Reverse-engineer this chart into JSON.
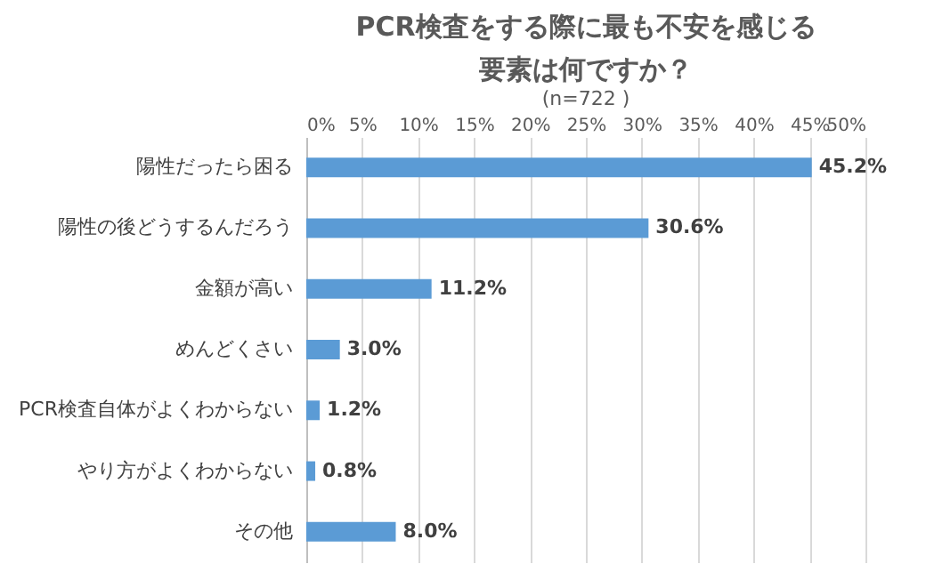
{
  "chart_data": {
    "type": "bar",
    "orientation": "horizontal",
    "title": [
      "PCR検査をする際に最も不安を感じる",
      "要素は何ですか？"
    ],
    "subtitle": "(n=722 )",
    "categories": [
      "陽性だったら困る",
      "陽性の後どうするんだろう",
      "金額が高い",
      "めんどくさい",
      "PCR検査自体がよくわからない",
      "やり方がよくわからない",
      "その他"
    ],
    "values": [
      45.2,
      30.6,
      11.2,
      3.0,
      1.2,
      0.8,
      8.0
    ],
    "value_labels": [
      "45.2%",
      "30.6%",
      "11.2%",
      "3.0%",
      "1.2%",
      "0.8%",
      "8.0%"
    ],
    "color": "#5b9bd5",
    "xlim": [
      0,
      50
    ],
    "xticks": [
      {
        "value": 0,
        "label": "0%"
      },
      {
        "value": 5,
        "label": "5%"
      },
      {
        "value": 10,
        "label": "10%"
      },
      {
        "value": 15,
        "label": "15%"
      },
      {
        "value": 20,
        "label": "20%"
      },
      {
        "value": 25,
        "label": "25%"
      },
      {
        "value": 30,
        "label": "30%"
      },
      {
        "value": 35,
        "label": "35%"
      },
      {
        "value": 40,
        "label": "40%"
      },
      {
        "value": 45,
        "label": "45%"
      },
      {
        "value": 50,
        "label": "50%"
      }
    ],
    "grid": "x"
  }
}
